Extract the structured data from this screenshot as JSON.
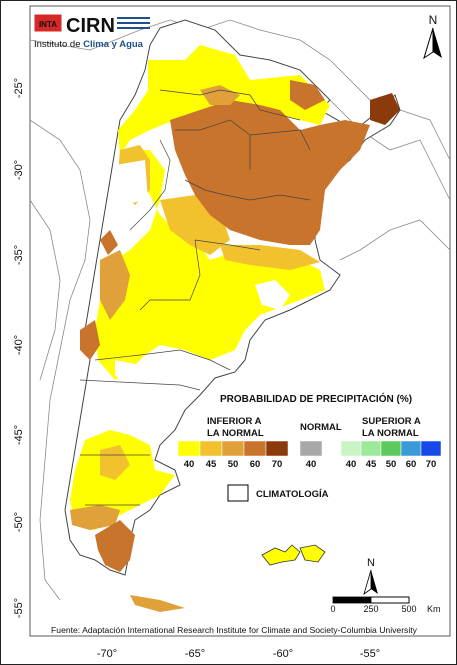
{
  "logo": {
    "badge": "INTA",
    "name": "CIRN",
    "subtitle_prefix": "Instituto de ",
    "subtitle_emph": "Clima y Agua"
  },
  "north_arrow_top": "N",
  "north_arrow_bottom": "N",
  "lat_labels": [
    "-25°",
    "-30°",
    "-35°",
    "-40°",
    "-45°",
    "-50°",
    "-55°"
  ],
  "lon_labels": [
    "-70°",
    "-65°",
    "-60°",
    "-55°"
  ],
  "legend": {
    "title": "PROBABILIDAD DE PRECIPITACIÓN (%)",
    "below": {
      "line1": "INFERIOR A",
      "line2": "LA NORMAL",
      "steps": [
        {
          "label": "40",
          "color": "#ffff00"
        },
        {
          "label": "45",
          "color": "#f2c12e"
        },
        {
          "label": "50",
          "color": "#e0a03a"
        },
        {
          "label": "60",
          "color": "#c8742c"
        },
        {
          "label": "70",
          "color": "#8b3a0c"
        }
      ]
    },
    "normal": {
      "title": "NORMAL",
      "step": {
        "label": "40",
        "color": "#a8a8a8"
      }
    },
    "above": {
      "line1": "SUPERIOR A",
      "line2": "LA NORMAL",
      "steps": [
        {
          "label": "40",
          "color": "#c9f5c6"
        },
        {
          "label": "45",
          "color": "#9ee89a"
        },
        {
          "label": "50",
          "color": "#5cc95c"
        },
        {
          "label": "60",
          "color": "#3a9bd8"
        },
        {
          "label": "70",
          "color": "#1649e8"
        }
      ]
    },
    "climatology": "CLIMATOLOGÍA"
  },
  "scale_bar": {
    "ticks": [
      "0",
      "250",
      "500"
    ],
    "unit": "Km"
  },
  "source": "Fuente: Adaptación International Research Institute for Climate and Society-Columbia University",
  "colors": {
    "land_outside": "#ffffff",
    "sea": "#ffffff",
    "border": "#555555"
  }
}
